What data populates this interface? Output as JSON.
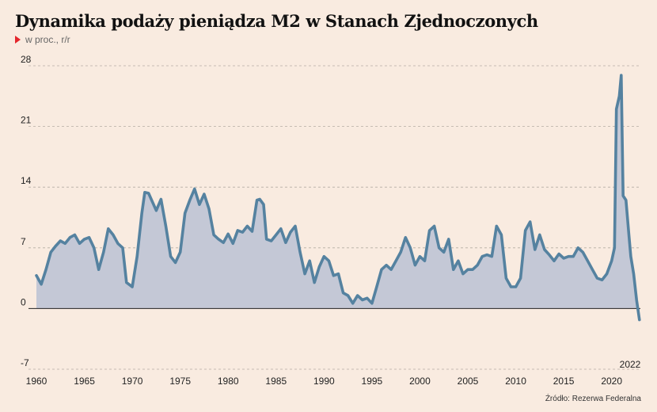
{
  "header": {
    "title": "Dynamika podaży pieniądza M2 w Stanach Zjednoczonych",
    "subtitle": "w proc., r/r"
  },
  "footer": {
    "source": "Źródło: Rezerwa Federalna"
  },
  "colors": {
    "line": "#5582a0",
    "area": "#c4c8d6",
    "grid": "#b5aca4",
    "zero": "#222222",
    "background": "#f9ebe0",
    "marker": "#e4262c"
  },
  "chart_data": {
    "type": "area",
    "title": "Dynamika podaży pieniądza M2 w Stanach Zjednoczonych",
    "ylabel": "w proc., r/r",
    "xlabel": "",
    "xlim": [
      1960,
      2023
    ],
    "ylim": [
      -7,
      28
    ],
    "y_ticks": [
      -7,
      0,
      7,
      14,
      21,
      28
    ],
    "x_ticks": [
      1960,
      1965,
      1970,
      1975,
      1980,
      1985,
      1990,
      1995,
      2000,
      2005,
      2010,
      2015,
      2020
    ],
    "annotation": "2022",
    "grid": true,
    "series": [
      {
        "x": [
          1960,
          1960.5,
          1961,
          1961.5,
          1962,
          1962.5,
          1963,
          1963.5,
          1964,
          1964.5,
          1965,
          1965.5,
          1966,
          1966.5,
          1967,
          1967.5,
          1968,
          1968.5,
          1969,
          1969.4,
          1970,
          1970.5,
          1971,
          1971.3,
          1971.7,
          1972.5,
          1973,
          1973.5,
          1974,
          1974.5,
          1975,
          1975.5,
          1976,
          1976.5,
          1977,
          1977.5,
          1978,
          1978.5,
          1979,
          1979.5,
          1980,
          1980.5,
          1981,
          1981.5,
          1982,
          1982.5,
          1983,
          1983.3,
          1983.7,
          1984,
          1984.5,
          1985,
          1985.5,
          1986,
          1986.5,
          1987,
          1987.5,
          1988,
          1988.5,
          1989,
          1989.5,
          1990,
          1990.5,
          1991,
          1991.5,
          1992,
          1992.5,
          1993,
          1993.5,
          1994,
          1994.5,
          1995,
          1995.5,
          1996,
          1996.5,
          1997,
          1997.5,
          1998,
          1998.5,
          1999,
          1999.5,
          2000,
          2000.5,
          2001,
          2001.5,
          2002,
          2002.5,
          2003,
          2003.5,
          2004,
          2004.5,
          2005,
          2005.5,
          2006,
          2006.5,
          2007,
          2007.5,
          2008,
          2008.5,
          2009,
          2009.5,
          2010,
          2010.5,
          2011,
          2011.5,
          2012,
          2012.5,
          2013,
          2013.5,
          2014,
          2014.5,
          2015,
          2015.5,
          2016,
          2016.5,
          2017,
          2017.5,
          2018,
          2018.5,
          2019,
          2019.5,
          2020,
          2020.3,
          2020.5,
          2020.8,
          2021,
          2021.2,
          2021.5,
          2021.8,
          2022,
          2022.3,
          2022.6,
          2022.9
        ],
        "y": [
          3.8,
          2.8,
          4.5,
          6.5,
          7.2,
          7.8,
          7.5,
          8.2,
          8.5,
          7.5,
          8.0,
          8.2,
          7.0,
          4.5,
          6.5,
          9.2,
          8.5,
          7.5,
          7.0,
          3.0,
          2.5,
          6.0,
          11.0,
          13.4,
          13.3,
          11.3,
          12.6,
          9.5,
          6.0,
          5.3,
          6.5,
          11.0,
          12.5,
          13.8,
          12.0,
          13.2,
          11.5,
          8.5,
          8.0,
          7.6,
          8.6,
          7.5,
          9.0,
          8.8,
          9.5,
          8.9,
          12.5,
          12.6,
          12.0,
          8.0,
          7.8,
          8.5,
          9.2,
          7.6,
          8.8,
          9.5,
          6.5,
          4.0,
          5.5,
          3.0,
          4.8,
          6.0,
          5.5,
          3.8,
          4.0,
          1.8,
          1.5,
          0.6,
          1.5,
          1.0,
          1.2,
          0.6,
          2.5,
          4.5,
          5.0,
          4.5,
          5.5,
          6.5,
          8.2,
          7.0,
          5.0,
          6.0,
          5.5,
          9.0,
          9.5,
          7.0,
          6.5,
          8.0,
          4.5,
          5.5,
          4.0,
          4.5,
          4.5,
          5.0,
          6.0,
          6.2,
          6.0,
          9.5,
          8.5,
          3.5,
          2.5,
          2.5,
          3.5,
          9.0,
          10.0,
          6.8,
          8.5,
          6.8,
          6.2,
          5.5,
          6.3,
          5.8,
          6.0,
          6.0,
          7.0,
          6.5,
          5.5,
          4.5,
          3.5,
          3.3,
          4.0,
          5.5,
          7.0,
          23.0,
          24.5,
          26.9,
          13.0,
          12.5,
          8.5,
          6.0,
          4.0,
          1.0,
          -1.3
        ]
      }
    ]
  }
}
